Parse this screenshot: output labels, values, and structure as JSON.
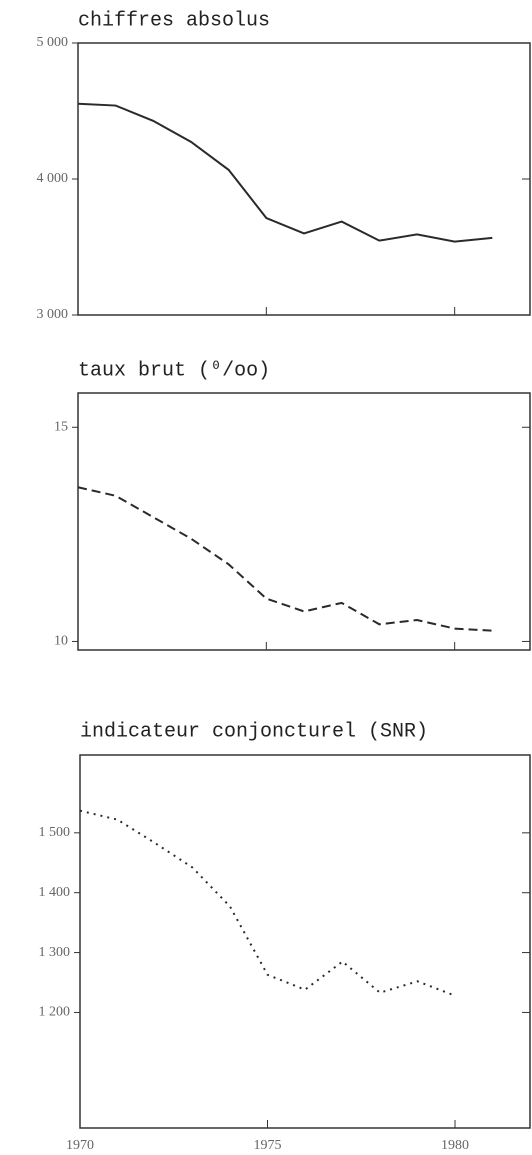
{
  "chart_data": [
    {
      "type": "line",
      "title": "chiffres absolus",
      "x": [
        1970,
        1971,
        1972,
        1973,
        1974,
        1975,
        1976,
        1977,
        1978,
        1979,
        1980,
        1981
      ],
      "values": [
        4553,
        4540,
        4427,
        4273,
        4067,
        3713,
        3600,
        3687,
        3547,
        3593,
        3540,
        3567
      ],
      "color": "#2a2a2a",
      "dash": "solid",
      "xlim": [
        1970,
        1982
      ],
      "xticks": [
        1970,
        1975,
        1980
      ],
      "ylim": [
        3000,
        5000
      ],
      "yticks": [
        {
          "value": 3000,
          "label": "3 000"
        },
        {
          "value": 4000,
          "label": "4 000"
        },
        {
          "value": 5000,
          "label": "5 000"
        }
      ]
    },
    {
      "type": "line",
      "title": "taux brut (⁰/oo)",
      "x": [
        1970,
        1971,
        1972,
        1973,
        1974,
        1975,
        1976,
        1977,
        1978,
        1979,
        1980,
        1981
      ],
      "values": [
        13.6,
        13.4,
        12.9,
        12.4,
        11.8,
        11.0,
        10.7,
        10.9,
        10.4,
        10.5,
        10.3,
        10.25
      ],
      "color": "#2a2a2a",
      "dash": "dashed",
      "xlim": [
        1970,
        1982
      ],
      "xticks": [
        1970,
        1975,
        1980
      ],
      "ylim": [
        9.8,
        15.8
      ],
      "yticks": [
        10,
        15
      ]
    },
    {
      "type": "line",
      "title": "indicateur conjoncturel (SNR)",
      "x": [
        1970,
        1971,
        1972,
        1973,
        1974,
        1975,
        1976,
        1977,
        1978,
        1979,
        1980
      ],
      "values": [
        1537,
        1522,
        1483,
        1442,
        1377,
        1263,
        1238,
        1285,
        1233,
        1252,
        1228
      ],
      "color": "#2a2a2a",
      "dash": "dotted",
      "xlim": [
        1970,
        1982
      ],
      "xticks": [
        1970,
        1975,
        1980
      ],
      "ylim": [
        1007,
        1630
      ],
      "yticks": [
        {
          "value": 1200,
          "label": "1 200"
        },
        {
          "value": 1300,
          "label": "1 300"
        },
        {
          "value": 1400,
          "label": "1 400"
        },
        {
          "value": 1500,
          "label": "1 500"
        }
      ]
    }
  ]
}
